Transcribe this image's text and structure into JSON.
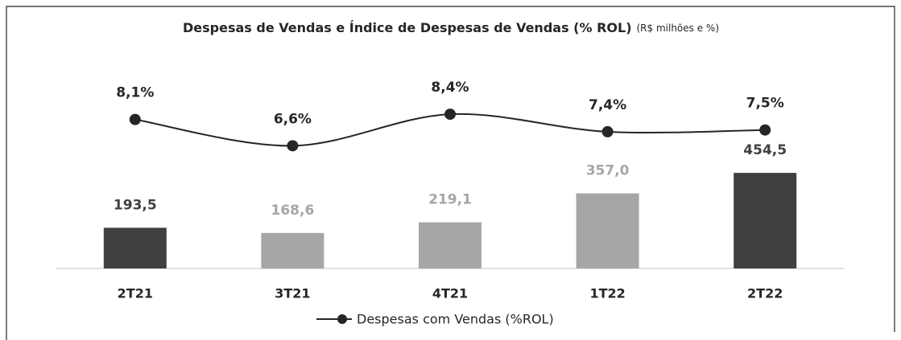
{
  "chart_data": {
    "type": "bar",
    "title": "Despesas de Vendas e Índice de Despesas de Vendas (% ROL)",
    "subtitle": "(R$ milhões e %)",
    "categories": [
      "2T21",
      "3T21",
      "4T21",
      "1T22",
      "2T22"
    ],
    "ylim": [
      0,
      1200
    ],
    "y2lim": [
      -0.4,
      14
    ],
    "legend": "bottom",
    "series": [
      {
        "type": "bar",
        "colors": [
          "#404040",
          "#a6a6a6",
          "#a6a6a6",
          "#a6a6a6",
          "#404040"
        ],
        "values": [
          193.5,
          168.6,
          219.1,
          357.0,
          454.5
        ],
        "value_labels": [
          "193,5",
          "168,6",
          "219,1",
          "357,0",
          "454,5"
        ]
      },
      {
        "type": "line",
        "axis": "y2",
        "name": "Despesas com Vendas (%ROL)",
        "color": "#262626",
        "values": [
          8.1,
          6.6,
          8.4,
          7.4,
          7.5
        ],
        "value_labels": [
          "8,1%",
          "6,6%",
          "8,4%",
          "7,4%",
          "7,5%"
        ]
      }
    ]
  }
}
